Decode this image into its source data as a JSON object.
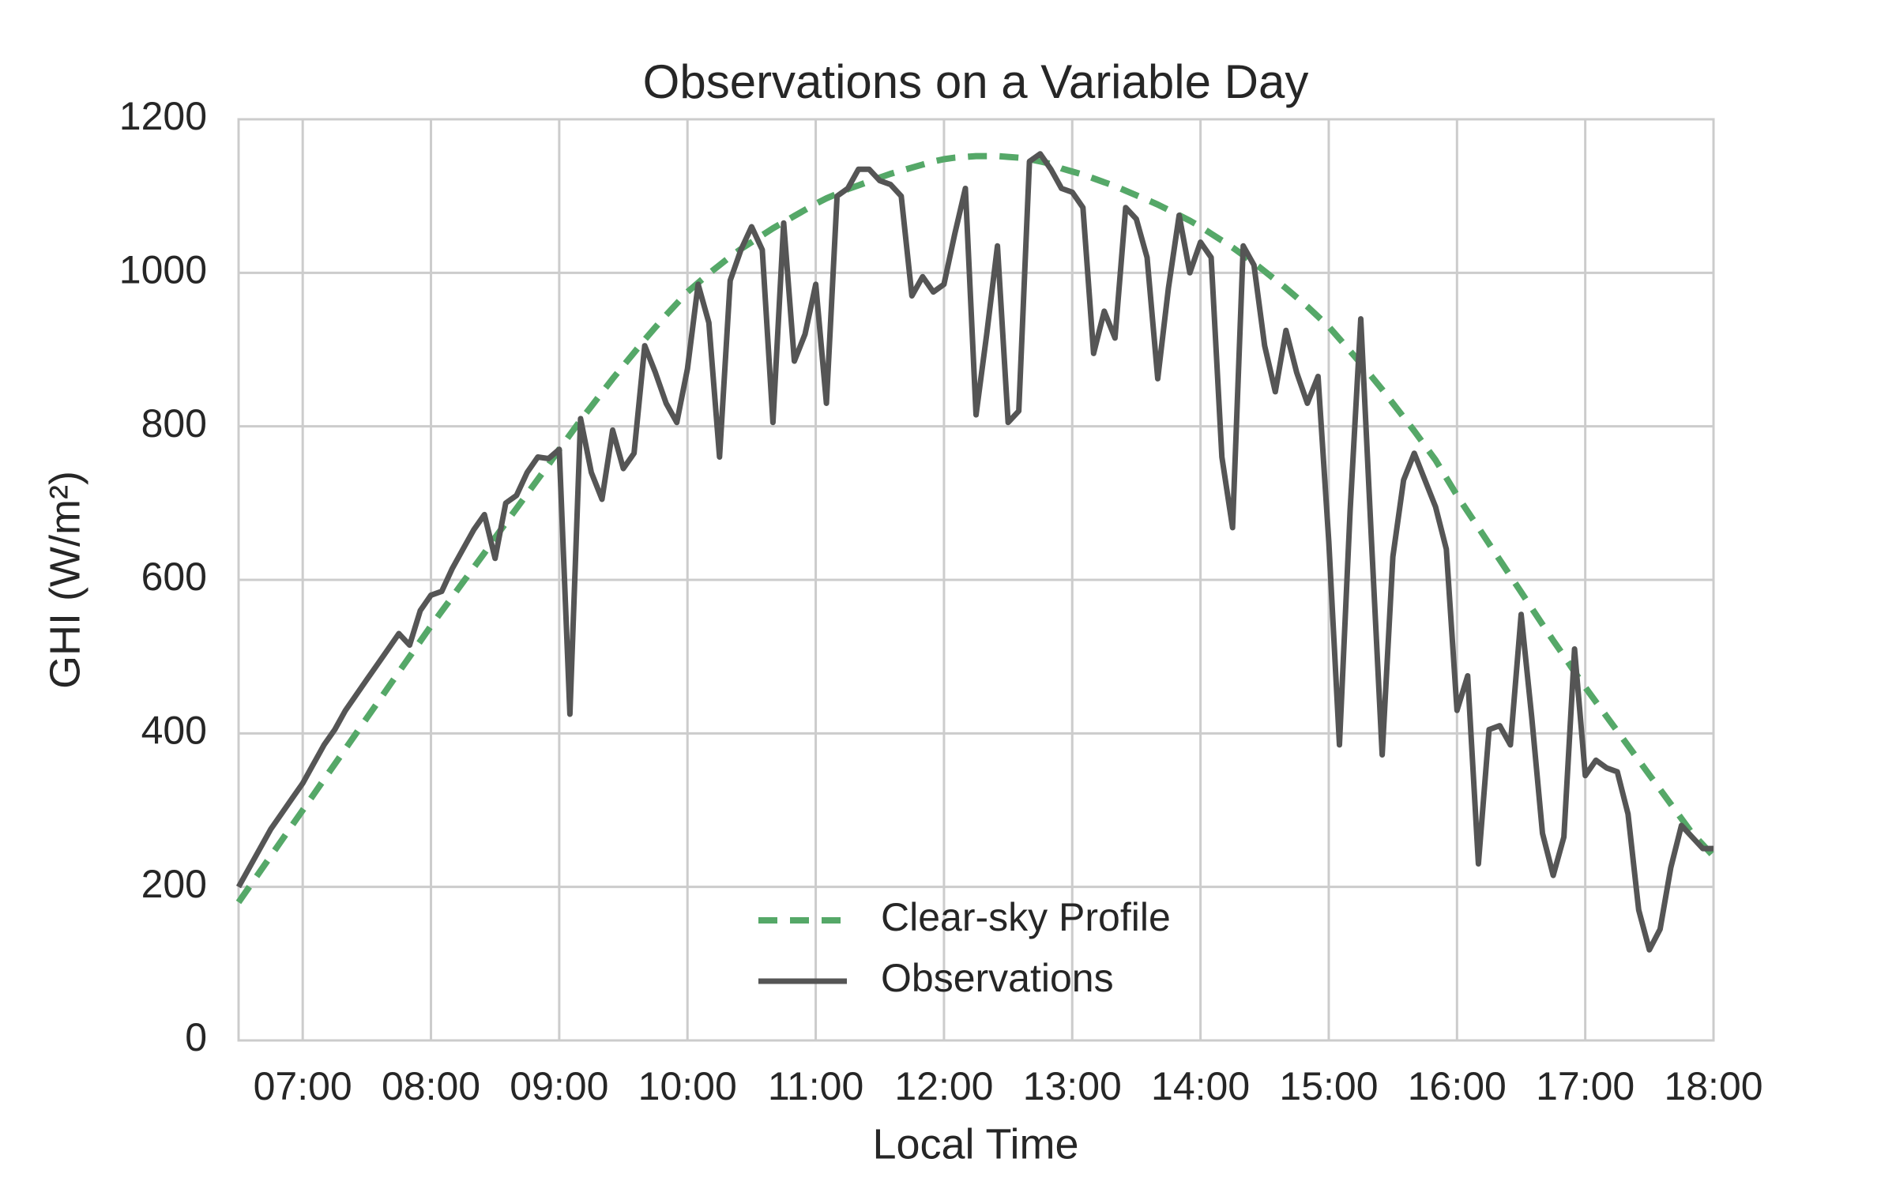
{
  "chart_data": {
    "type": "line",
    "title": "Observations on a Variable Day",
    "x_label": "Local Time",
    "y_label": "GHI (W/m²)",
    "x": [
      "06:30",
      "06:35",
      "06:40",
      "06:45",
      "06:50",
      "06:55",
      "07:00",
      "07:05",
      "07:10",
      "07:15",
      "07:20",
      "07:25",
      "07:30",
      "07:35",
      "07:40",
      "07:45",
      "07:50",
      "07:55",
      "08:00",
      "08:05",
      "08:10",
      "08:15",
      "08:20",
      "08:25",
      "08:30",
      "08:35",
      "08:40",
      "08:45",
      "08:50",
      "08:55",
      "09:00",
      "09:05",
      "09:10",
      "09:15",
      "09:20",
      "09:25",
      "09:30",
      "09:35",
      "09:40",
      "09:45",
      "09:50",
      "09:55",
      "10:00",
      "10:05",
      "10:10",
      "10:15",
      "10:20",
      "10:25",
      "10:30",
      "10:35",
      "10:40",
      "10:45",
      "10:50",
      "10:55",
      "11:00",
      "11:05",
      "11:10",
      "11:15",
      "11:20",
      "11:25",
      "11:30",
      "11:35",
      "11:40",
      "11:45",
      "11:50",
      "11:55",
      "12:00",
      "12:05",
      "12:10",
      "12:15",
      "12:20",
      "12:25",
      "12:30",
      "12:35",
      "12:40",
      "12:45",
      "12:50",
      "12:55",
      "13:00",
      "13:05",
      "13:10",
      "13:15",
      "13:20",
      "13:25",
      "13:30",
      "13:35",
      "13:40",
      "13:45",
      "13:50",
      "13:55",
      "14:00",
      "14:05",
      "14:10",
      "14:15",
      "14:20",
      "14:25",
      "14:30",
      "14:35",
      "14:40",
      "14:45",
      "14:50",
      "14:55",
      "15:00",
      "15:05",
      "15:10",
      "15:15",
      "15:20",
      "15:25",
      "15:30",
      "15:35",
      "15:40",
      "15:45",
      "15:50",
      "15:55",
      "16:00",
      "16:05",
      "16:10",
      "16:15",
      "16:20",
      "16:25",
      "16:30",
      "16:35",
      "16:40",
      "16:45",
      "16:50",
      "16:55",
      "17:00",
      "17:05",
      "17:10",
      "17:15",
      "17:20",
      "17:25",
      "17:30",
      "17:35",
      "17:40",
      "17:45",
      "17:50",
      "17:55",
      "18:00"
    ],
    "series": [
      {
        "name": "Clear-sky Profile",
        "color": "#55a868",
        "dash": true,
        "values": [
          180,
          200,
          220,
          240,
          260,
          280,
          300,
          320,
          340,
          360,
          380,
          400,
          420,
          440,
          460,
          480,
          500,
          520,
          540,
          559,
          578,
          597,
          616,
          635,
          655,
          674,
          693,
          712,
          731,
          750,
          770,
          789,
          808,
          826,
          844,
          862,
          879,
          896,
          913,
          929,
          945,
          960,
          975,
          987,
          999,
          1010,
          1021,
          1031,
          1040,
          1049,
          1058,
          1066,
          1074,
          1082,
          1090,
          1097,
          1103,
          1109,
          1114,
          1119,
          1124,
          1129,
          1133,
          1137,
          1141,
          1145,
          1148,
          1150,
          1151,
          1152,
          1152,
          1152,
          1151,
          1150,
          1148,
          1145,
          1142,
          1136,
          1132,
          1128,
          1123,
          1118,
          1113,
          1107,
          1101,
          1095,
          1089,
          1082,
          1075,
          1068,
          1060,
          1051,
          1042,
          1033,
          1023,
          1013,
          1002,
          991,
          980,
          968,
          956,
          943,
          930,
          914,
          898,
          882,
          865,
          848,
          830,
          812,
          794,
          775,
          756,
          733,
          710,
          689,
          668,
          647,
          626,
          605,
          584,
          563,
          542,
          521,
          501,
          480,
          460,
          441,
          422,
          403,
          384,
          365,
          346,
          327,
          308,
          289,
          270,
          255,
          240
        ]
      },
      {
        "name": "Observations",
        "color": "#555555",
        "dash": false,
        "values": [
          200,
          225,
          250,
          275,
          295,
          315,
          335,
          360,
          385,
          405,
          430,
          450,
          470,
          490,
          510,
          530,
          515,
          560,
          580,
          585,
          615,
          640,
          665,
          685,
          628,
          700,
          710,
          740,
          760,
          758,
          770,
          425,
          810,
          740,
          705,
          795,
          745,
          765,
          905,
          870,
          830,
          805,
          875,
          985,
          935,
          760,
          990,
          1030,
          1060,
          1030,
          805,
          1065,
          885,
          920,
          985,
          830,
          1100,
          1110,
          1135,
          1135,
          1120,
          1115,
          1100,
          970,
          995,
          975,
          985,
          1050,
          1110,
          815,
          920,
          1035,
          805,
          820,
          1145,
          1155,
          1135,
          1110,
          1105,
          1085,
          895,
          950,
          915,
          1085,
          1070,
          1020,
          862,
          980,
          1075,
          1000,
          1040,
          1020,
          760,
          668,
          1035,
          1010,
          905,
          845,
          925,
          870,
          830,
          865,
          650,
          385,
          690,
          940,
          650,
          372,
          630,
          730,
          765,
          730,
          695,
          640,
          430,
          475,
          230,
          405,
          410,
          385,
          555,
          420,
          270,
          215,
          265,
          510,
          345,
          365,
          355,
          350,
          295,
          170,
          118,
          145,
          225,
          280,
          265,
          250,
          250
        ]
      }
    ],
    "xlim": [
      "06:30",
      "18:00"
    ],
    "xticks": [
      "07:00",
      "08:00",
      "09:00",
      "10:00",
      "11:00",
      "12:00",
      "13:00",
      "14:00",
      "15:00",
      "16:00",
      "17:00",
      "18:00"
    ],
    "ylim": [
      0,
      1200
    ],
    "yticks": [
      0,
      200,
      400,
      600,
      800,
      1000,
      1200
    ],
    "grid": true,
    "legend": "lower center"
  }
}
